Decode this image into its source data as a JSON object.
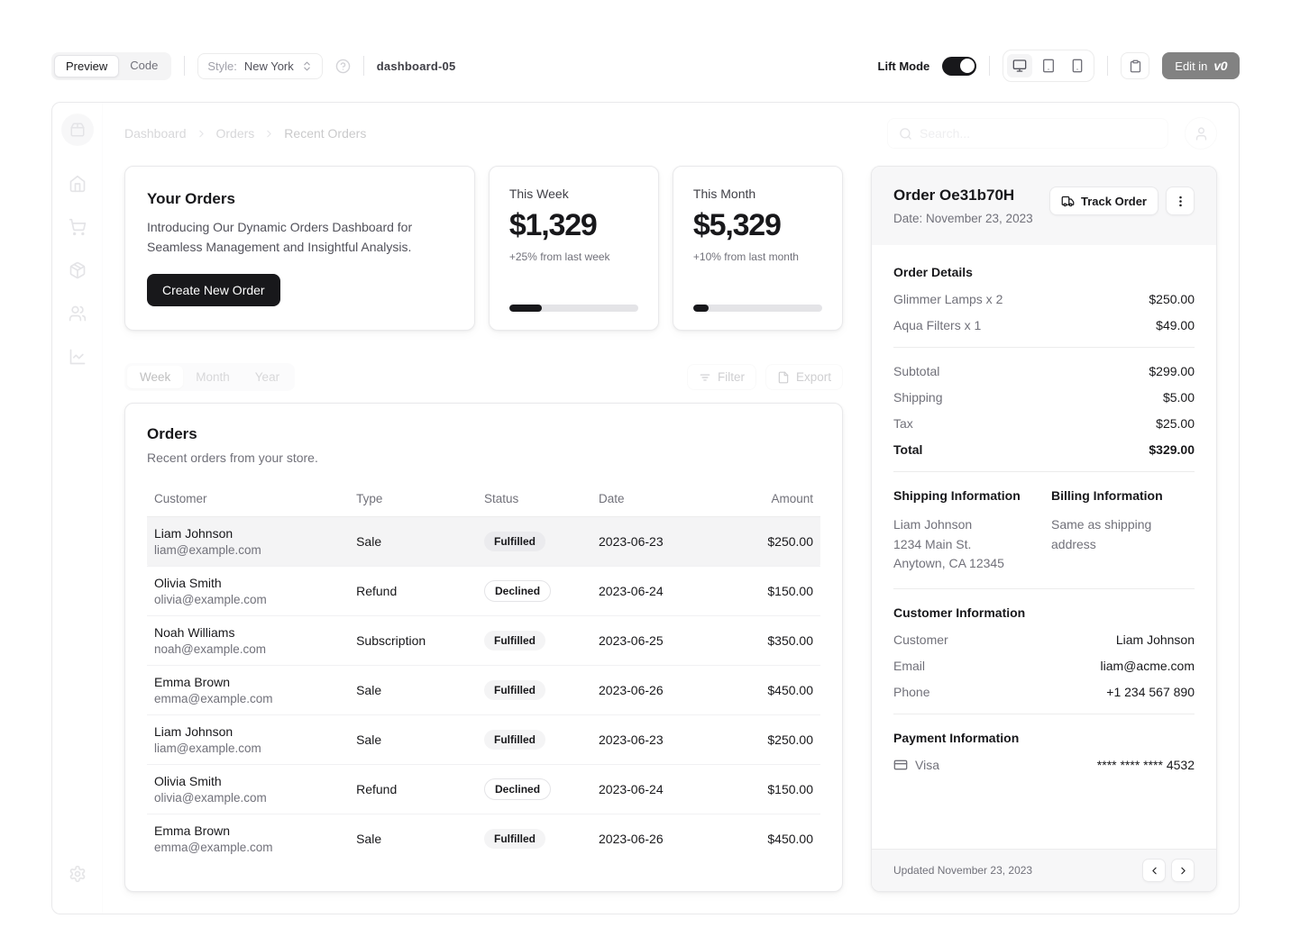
{
  "toolbar": {
    "preview_tab": "Preview",
    "code_tab": "Code",
    "style_label": "Style:",
    "style_value": "New York",
    "project_name": "dashboard-05",
    "lift_mode_label": "Lift Mode",
    "edit_in_label": "Edit in",
    "v0_logo": "v0"
  },
  "header": {
    "breadcrumb": [
      "Dashboard",
      "Orders",
      "Recent Orders"
    ],
    "search_placeholder": "Search..."
  },
  "promo_card": {
    "title": "Your Orders",
    "description": "Introducing Our Dynamic Orders Dashboard for Seamless Management and Insightful Analysis.",
    "button": "Create New Order"
  },
  "stat_cards": [
    {
      "label": "This Week",
      "value": "$1,329",
      "delta": "+25% from last week",
      "progress": 25
    },
    {
      "label": "This Month",
      "value": "$5,329",
      "delta": "+10% from last month",
      "progress": 12
    }
  ],
  "period_tabs": [
    "Week",
    "Month",
    "Year"
  ],
  "table_actions": {
    "filter": "Filter",
    "export": "Export"
  },
  "orders_table": {
    "title": "Orders",
    "subtitle": "Recent orders from your store.",
    "columns": [
      "Customer",
      "Type",
      "Status",
      "Date",
      "Amount"
    ],
    "rows": [
      {
        "name": "Liam Johnson",
        "email": "liam@example.com",
        "type": "Sale",
        "status": "Fulfilled",
        "date": "2023-06-23",
        "amount": "$250.00"
      },
      {
        "name": "Olivia Smith",
        "email": "olivia@example.com",
        "type": "Refund",
        "status": "Declined",
        "date": "2023-06-24",
        "amount": "$150.00"
      },
      {
        "name": "Noah Williams",
        "email": "noah@example.com",
        "type": "Subscription",
        "status": "Fulfilled",
        "date": "2023-06-25",
        "amount": "$350.00"
      },
      {
        "name": "Emma Brown",
        "email": "emma@example.com",
        "type": "Sale",
        "status": "Fulfilled",
        "date": "2023-06-26",
        "amount": "$450.00"
      },
      {
        "name": "Liam Johnson",
        "email": "liam@example.com",
        "type": "Sale",
        "status": "Fulfilled",
        "date": "2023-06-23",
        "amount": "$250.00"
      },
      {
        "name": "Olivia Smith",
        "email": "olivia@example.com",
        "type": "Refund",
        "status": "Declined",
        "date": "2023-06-24",
        "amount": "$150.00"
      },
      {
        "name": "Emma Brown",
        "email": "emma@example.com",
        "type": "Sale",
        "status": "Fulfilled",
        "date": "2023-06-26",
        "amount": "$450.00"
      }
    ]
  },
  "order_panel": {
    "title": "Order Oe31b70H",
    "date": "Date: November 23, 2023",
    "track_button": "Track Order",
    "details": {
      "heading": "Order Details",
      "items": [
        {
          "label": "Glimmer Lamps x 2",
          "value": "$250.00"
        },
        {
          "label": "Aqua Filters x 1",
          "value": "$49.00"
        }
      ],
      "subtotal_label": "Subtotal",
      "subtotal": "$299.00",
      "shipping_label": "Shipping",
      "shipping": "$5.00",
      "tax_label": "Tax",
      "tax": "$25.00",
      "total_label": "Total",
      "total": "$329.00"
    },
    "shipping_info": {
      "heading": "Shipping Information",
      "lines": [
        "Liam Johnson",
        "1234 Main St.",
        "Anytown, CA 12345"
      ]
    },
    "billing_info": {
      "heading": "Billing Information",
      "text": "Same as shipping address"
    },
    "customer_info": {
      "heading": "Customer Information",
      "customer_label": "Customer",
      "customer": "Liam Johnson",
      "email_label": "Email",
      "email": "liam@acme.com",
      "phone_label": "Phone",
      "phone": "+1 234 567 890"
    },
    "payment_info": {
      "heading": "Payment Information",
      "method": "Visa",
      "number": "**** **** **** 4532"
    },
    "footer": {
      "updated": "Updated November 23, 2023"
    }
  },
  "colors": {
    "accent": "#18181b",
    "border": "#e4e4e7",
    "muted_text": "#71717a",
    "row_highlight": "#f4f4f5"
  }
}
